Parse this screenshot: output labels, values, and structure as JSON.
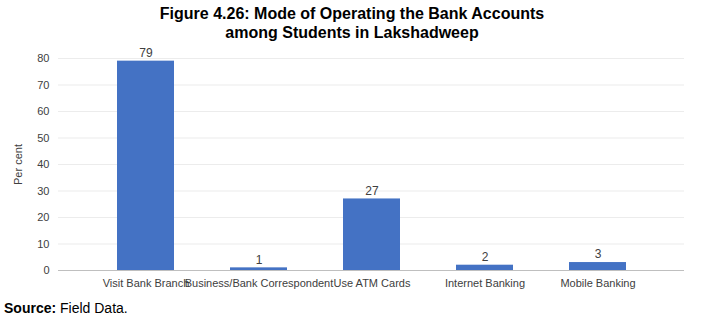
{
  "chart_data": {
    "type": "bar",
    "title": "Figure 4.26: Mode of Operating the Bank Accounts among Students in Lakshadweep",
    "y_label": "Per cent",
    "categories": [
      "Visit Bank Branch",
      "Business/Bank Correspondent",
      "Use ATM Cards",
      "Internet Banking",
      "Mobile Banking"
    ],
    "values": [
      79,
      1,
      27,
      2,
      3
    ],
    "color": "#4472c4",
    "ylim": [
      0,
      80
    ],
    "yticks": [
      0,
      10,
      20,
      30,
      40,
      50,
      60,
      70,
      80
    ],
    "grid": true,
    "data_labels": true,
    "source": "Source: Field Data."
  }
}
